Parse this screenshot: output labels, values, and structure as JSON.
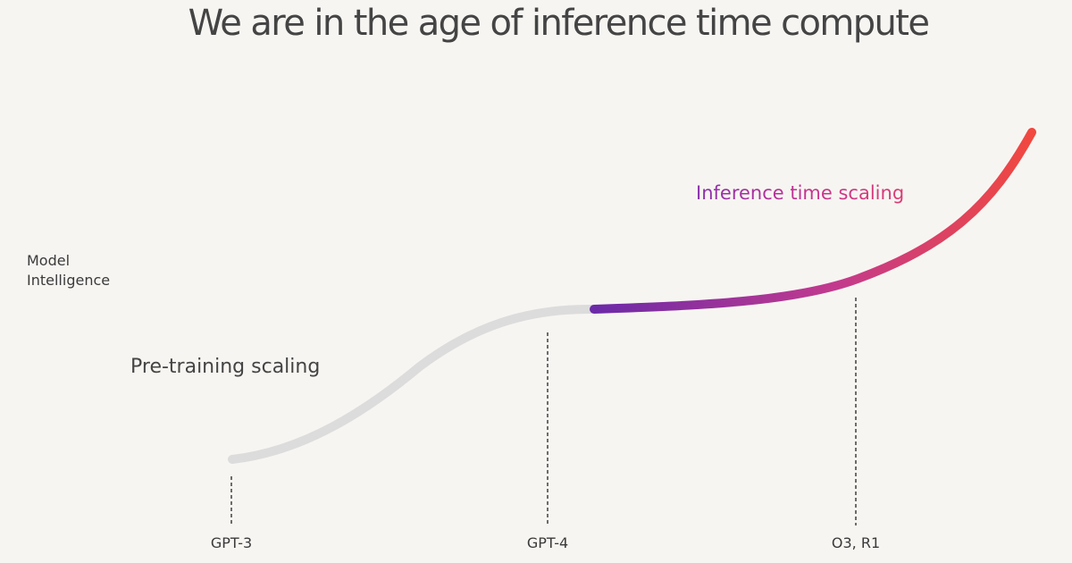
{
  "title": "We are in the age of inference time compute",
  "y_axis_label": [
    "Model",
    "Intelligence"
  ],
  "phases": {
    "pre_training": "Pre-training scaling",
    "inference": "Inference time scaling"
  },
  "milestones": [
    "GPT-3",
    "GPT-4",
    "O3, R1"
  ],
  "colors": {
    "background": "#f7f5f2",
    "pre_training_curve": "#dcdcdc",
    "inference_gradient_start": "#6b2aa8",
    "inference_gradient_mid": "#c23a8e",
    "inference_gradient_end": "#f1483f",
    "text": "#444444",
    "marker_line": "#333333"
  }
}
